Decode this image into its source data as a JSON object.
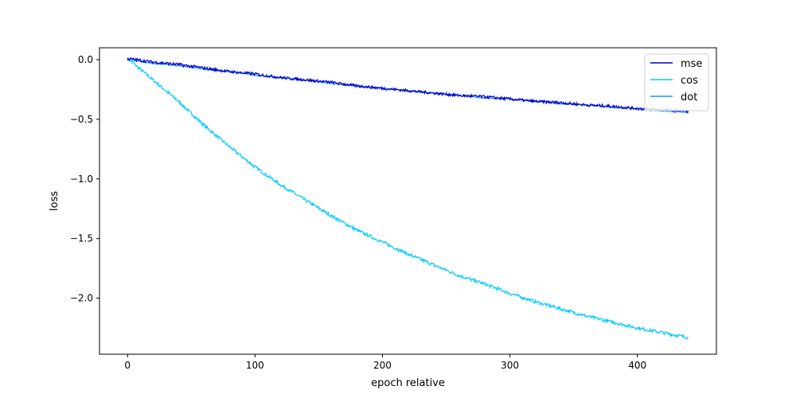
{
  "chart_data": {
    "type": "line",
    "title": "",
    "xlabel": "epoch relative",
    "ylabel": "loss",
    "xlim": [
      -22,
      462
    ],
    "ylim": [
      -2.47,
      0.1
    ],
    "xticks": [
      0,
      100,
      200,
      300,
      400
    ],
    "xtick_labels": [
      "0",
      "100",
      "200",
      "300",
      "400"
    ],
    "yticks": [
      0.0,
      -0.5,
      -1.0,
      -1.5,
      -2.0
    ],
    "ytick_labels": [
      "0.0",
      "−0.5",
      "−1.0",
      "−1.5",
      "−2.0"
    ],
    "grid": false,
    "legend_position": "upper right",
    "series": [
      {
        "name": "mse",
        "color": "#0000cd",
        "x": [
          0,
          20,
          40,
          60,
          80,
          100,
          120,
          140,
          160,
          180,
          200,
          220,
          240,
          260,
          280,
          300,
          320,
          340,
          360,
          380,
          400,
          420,
          440
        ],
        "y": [
          0.01,
          -0.02,
          -0.04,
          -0.07,
          -0.1,
          -0.12,
          -0.15,
          -0.17,
          -0.19,
          -0.22,
          -0.24,
          -0.26,
          -0.28,
          -0.3,
          -0.31,
          -0.33,
          -0.35,
          -0.36,
          -0.38,
          -0.39,
          -0.41,
          -0.42,
          -0.43
        ]
      },
      {
        "name": "cos",
        "color": "#00ccff",
        "x": [
          0,
          20,
          40,
          60,
          80,
          100,
          120,
          140,
          160,
          180,
          200,
          220,
          240,
          260,
          280,
          300,
          320,
          340,
          360,
          380,
          400,
          420,
          440
        ],
        "y": [
          0.01,
          -0.17,
          -0.35,
          -0.55,
          -0.73,
          -0.9,
          -1.05,
          -1.18,
          -1.31,
          -1.43,
          -1.53,
          -1.63,
          -1.72,
          -1.81,
          -1.88,
          -1.96,
          -2.03,
          -2.09,
          -2.15,
          -2.2,
          -2.25,
          -2.29,
          -2.33
        ]
      },
      {
        "name": "dot",
        "color": "#1e90ff",
        "x": [
          0,
          20,
          40,
          60,
          80,
          100,
          120,
          140,
          160,
          180,
          200,
          220,
          240,
          260,
          280,
          300,
          320,
          340,
          360,
          380,
          400,
          420,
          440
        ],
        "y": [
          0.0,
          -0.03,
          -0.05,
          -0.08,
          -0.1,
          -0.13,
          -0.15,
          -0.17,
          -0.2,
          -0.22,
          -0.24,
          -0.26,
          -0.28,
          -0.3,
          -0.32,
          -0.33,
          -0.35,
          -0.37,
          -0.38,
          -0.4,
          -0.41,
          -0.43,
          -0.44
        ]
      }
    ]
  }
}
